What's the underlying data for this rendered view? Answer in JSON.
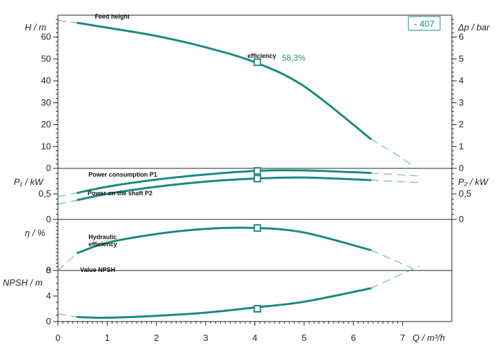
{
  "chart_data": {
    "type": "line",
    "model_label": "- 407",
    "x_axis": {
      "label": "Q / m³/h",
      "range": [
        0,
        8
      ],
      "ticks": [
        0,
        1,
        2,
        3,
        4,
        5,
        6,
        7
      ]
    },
    "panels": [
      {
        "id": "head",
        "left_label": "H / m",
        "right_label": "Δp / bar",
        "left_range": [
          0,
          70
        ],
        "left_ticks": [
          0,
          10,
          20,
          30,
          40,
          50,
          60
        ],
        "right_range": [
          0,
          7
        ],
        "right_ticks": [
          0,
          1,
          2,
          3,
          4,
          5,
          6
        ],
        "series": [
          {
            "name": "Feed height",
            "x": [
              0.4,
              1,
              2,
              3,
              4,
              5,
              6.35
            ],
            "y": [
              66.5,
              64.3,
              60.5,
              55.3,
              48.5,
              37.5,
              13.5
            ],
            "extension": {
              "x": [
                0,
                0.4
              ],
              "y": [
                67.5,
                66.5
              ]
            },
            "extension_end": {
              "x": [
                6.35,
                7.0,
                7.2
              ],
              "y": [
                13.5,
                4.5,
                1
              ]
            }
          }
        ],
        "markers": [
          {
            "x": 4.05,
            "y": 48.5
          }
        ],
        "annotations": [
          {
            "text": "Feed height",
            "x": 0.75,
            "y": 68.5
          },
          {
            "text": "efficiency",
            "x": 3.85,
            "y": 50.5
          }
        ],
        "efficiency_value": {
          "text": "58,3%",
          "x": 4.55,
          "y": 49.2
        }
      },
      {
        "id": "power",
        "left_label": "P₁ / kW",
        "right_label": "P₂ / kW",
        "left_range": [
          0,
          1
        ],
        "left_ticks": [
          0,
          0.5
        ],
        "left_tick_labels": [
          "0",
          "0,5"
        ],
        "right_ticks": [
          0,
          0.5
        ],
        "right_tick_labels": [
          "0",
          "0,5"
        ],
        "series": [
          {
            "name": "Power consumption P1",
            "x": [
              0.4,
              1,
              2,
              3,
              4,
              5,
              6.35
            ],
            "y": [
              0.52,
              0.64,
              0.78,
              0.88,
              0.95,
              0.96,
              0.91
            ],
            "extension": {
              "x": [
                0,
                0.4
              ],
              "y": [
                0.45,
                0.52
              ]
            },
            "extension_end": {
              "x": [
                6.35,
                7.35
              ],
              "y": [
                0.91,
                0.85
              ]
            }
          },
          {
            "name": "Power on the shaft P2",
            "x": [
              0.4,
              1,
              2,
              3,
              4,
              5,
              6.35
            ],
            "y": [
              0.38,
              0.5,
              0.64,
              0.74,
              0.8,
              0.82,
              0.77
            ],
            "extension": {
              "x": [
                0,
                0.4
              ],
              "y": [
                0.3,
                0.38
              ]
            },
            "extension_end": {
              "x": [
                6.35,
                7.35
              ],
              "y": [
                0.77,
                0.72
              ]
            }
          }
        ],
        "markers": [
          {
            "x": 4.05,
            "y": 0.95
          },
          {
            "x": 4.05,
            "y": 0.8
          }
        ],
        "annotations": [
          {
            "text": "Power consumption P1",
            "x": 0.62,
            "y": 0.84
          },
          {
            "text": "Power on the shaft P2",
            "x": 0.6,
            "y": 0.47
          }
        ]
      },
      {
        "id": "efficiency",
        "left_label": "η / %",
        "left_range": [
          0,
          70
        ],
        "left_ticks": [
          0
        ],
        "series": [
          {
            "name": "Hydraulic efficiency",
            "x": [
              0.4,
              1,
              2,
              3,
              4,
              5,
              6.35
            ],
            "y": [
              24,
              38,
              50,
              57,
              58.3,
              52,
              28
            ],
            "extension": {
              "x": [
                0,
                0.4
              ],
              "y": [
                0,
                24
              ]
            },
            "extension_end": {
              "x": [
                6.35,
                7.2
              ],
              "y": [
                28,
                3
              ]
            }
          }
        ],
        "markers": [
          {
            "x": 4.05,
            "y": 58.3
          }
        ],
        "annotations": [
          {
            "text": "Hydraulic",
            "x": 0.62,
            "y": 43
          },
          {
            "text": "efficiency",
            "x": 0.62,
            "y": 33
          }
        ]
      },
      {
        "id": "npsh",
        "left_label": "NPSH / m",
        "left_range": [
          0,
          8
        ],
        "left_ticks": [
          0,
          4,
          8
        ],
        "series": [
          {
            "name": "Value NPSH",
            "x": [
              0.4,
              1,
              2,
              3,
              4,
              5,
              6.35
            ],
            "y": [
              0.7,
              0.6,
              0.9,
              1.4,
              2.2,
              3.1,
              5.2
            ],
            "extension": {
              "x": [
                0,
                0.4
              ],
              "y": [
                1.2,
                0.7
              ]
            },
            "extension_end": {
              "x": [
                6.35,
                7.35
              ],
              "y": [
                5.2,
                8.7
              ]
            }
          }
        ],
        "markers": [
          {
            "x": 4.05,
            "y": 2.0
          }
        ],
        "annotations": [
          {
            "text": "Value NPSH",
            "x": 0.45,
            "y": 7.8
          }
        ]
      }
    ],
    "line_color": "#1a8a7e"
  }
}
